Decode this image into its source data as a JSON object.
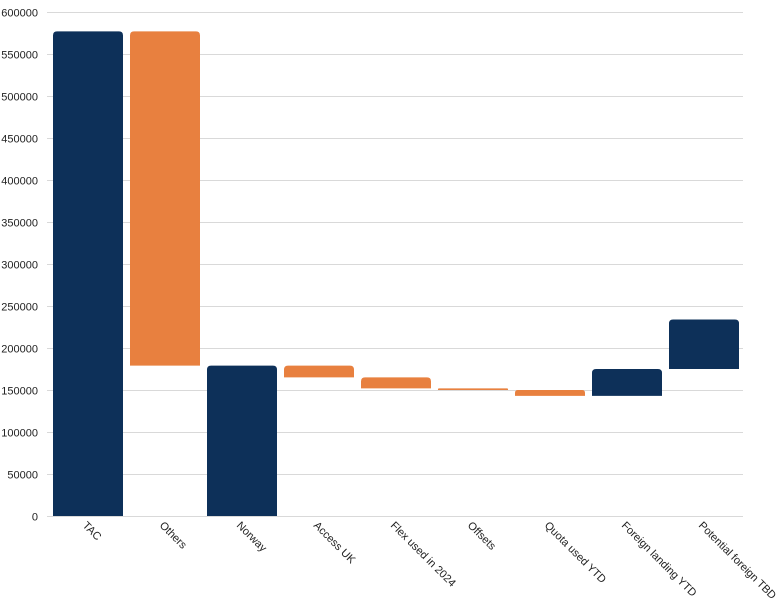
{
  "chart_data": {
    "type": "bar",
    "subtype": "waterfall",
    "title": "",
    "xlabel": "",
    "ylabel": "",
    "ylim": [
      0,
      600000
    ],
    "yticks": [
      0,
      50000,
      100000,
      150000,
      200000,
      250000,
      300000,
      350000,
      400000,
      450000,
      500000,
      550000,
      600000
    ],
    "grid": true,
    "legend": "none",
    "colors": {
      "total": "#0d3059",
      "decrease": "#e8803f"
    },
    "categories": [
      "TAC",
      "Others",
      "Norway",
      "Access UK",
      "Flex used in 2024",
      "Offsets",
      "Quota used YTD",
      "Foreign landing YTD",
      "Potential foreign TBD"
    ],
    "bars": [
      {
        "category": "TAC",
        "start": 0,
        "end": 577000,
        "kind": "total"
      },
      {
        "category": "Others",
        "start": 179000,
        "end": 577000,
        "kind": "decrease"
      },
      {
        "category": "Norway",
        "start": 0,
        "end": 179000,
        "kind": "total"
      },
      {
        "category": "Access UK",
        "start": 165000,
        "end": 179000,
        "kind": "decrease"
      },
      {
        "category": "Flex used in 2024",
        "start": 152000,
        "end": 165000,
        "kind": "decrease"
      },
      {
        "category": "Offsets",
        "start": 150000,
        "end": 152000,
        "kind": "decrease"
      },
      {
        "category": "Quota used YTD",
        "start": 143000,
        "end": 150000,
        "kind": "decrease"
      },
      {
        "category": "Foreign landing YTD",
        "start": 143000,
        "end": 175000,
        "kind": "total"
      },
      {
        "category": "Potential foreign TBD",
        "start": 175000,
        "end": 234000,
        "kind": "total"
      }
    ]
  }
}
